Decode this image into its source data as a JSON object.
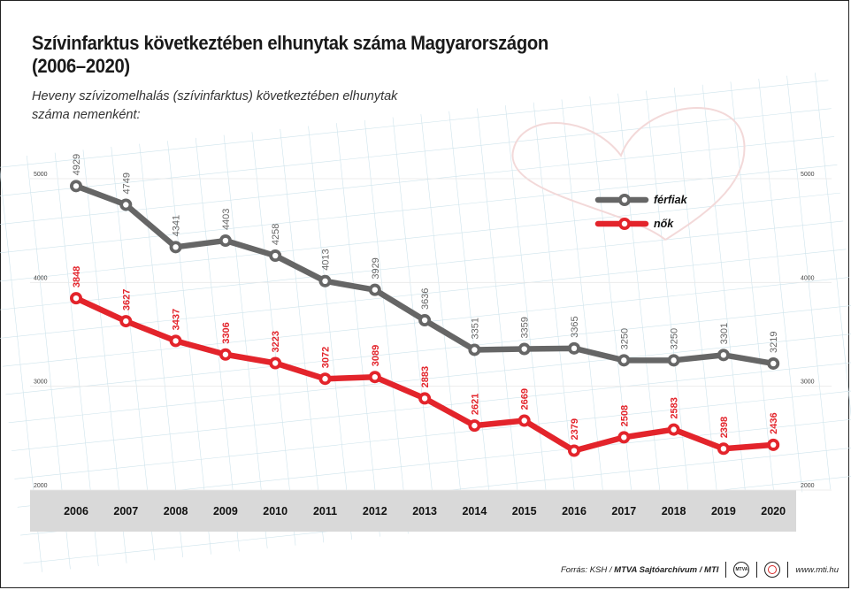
{
  "title": "Szívinfarktus következtében elhunytak száma Magyarországon (2006–2020)",
  "subtitle": "Heveny szívizomelhalás (szívinfarktus) következtében elhunytak száma nemenként:",
  "footer": {
    "source_prefix": "Forrás: KSH / ",
    "source_bold": "MTVA Sajtóarchívum / MTI",
    "logo_mtva": "MTVA",
    "site": "www.mti.hu"
  },
  "colors": {
    "men": "#666666",
    "women": "#e3242b",
    "year_band": "#d9d9d9",
    "grid": "#cfe4ec"
  },
  "chart_data": {
    "type": "line",
    "x": [
      "2006",
      "2007",
      "2008",
      "2009",
      "2010",
      "2011",
      "2012",
      "2013",
      "2014",
      "2015",
      "2016",
      "2017",
      "2018",
      "2019",
      "2020"
    ],
    "series": [
      {
        "name": "férfiak",
        "color": "#666666",
        "values": [
          4929,
          4749,
          4341,
          4403,
          4258,
          4013,
          3929,
          3636,
          3351,
          3359,
          3365,
          3250,
          3250,
          3301,
          3219
        ]
      },
      {
        "name": "nők",
        "color": "#e3242b",
        "values": [
          3848,
          3627,
          3437,
          3306,
          3223,
          3072,
          3089,
          2883,
          2621,
          2669,
          2379,
          2508,
          2583,
          2398,
          2436
        ]
      }
    ],
    "yticks": [
      "5000",
      "4000",
      "3000",
      "2000"
    ],
    "ylim": [
      2000,
      5000
    ],
    "legend_position": "top-right",
    "grid": true
  }
}
